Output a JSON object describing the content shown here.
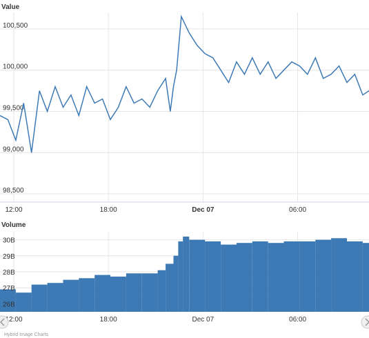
{
  "chart_data": [
    {
      "type": "line",
      "title": "Value",
      "y_ticks": [
        "100,500",
        "100,000",
        "99,500",
        "99,000",
        "98,500"
      ],
      "y_tick_values": [
        100500,
        100000,
        99500,
        99000,
        98500
      ],
      "ylim": [
        98400,
        100700
      ],
      "x_tick_labels": [
        "12:00",
        "18:00",
        "Dec 07",
        "06:00"
      ],
      "x_tick_hours": [
        0,
        6,
        12,
        18
      ],
      "xlim_hours": [
        0,
        23.4
      ],
      "grid": true,
      "color": "#3d7ab5",
      "series": [
        {
          "x": [
            0.0,
            0.5,
            1.0,
            1.5,
            2.0,
            2.5,
            3.0,
            3.5,
            4.0,
            4.5,
            5.0,
            5.5,
            6.0,
            6.5,
            7.0,
            7.5,
            8.0,
            8.5,
            9.0,
            9.5,
            10.0,
            10.5,
            10.8,
            11.0,
            11.2,
            11.5,
            12.0,
            12.5,
            13.0,
            13.5,
            14.0,
            14.5,
            15.0,
            15.5,
            16.0,
            16.5,
            17.0,
            17.5,
            18.0,
            18.5,
            19.0,
            19.5,
            20.0,
            20.5,
            21.0,
            21.5,
            22.0,
            22.5,
            23.0,
            23.4
          ],
          "y": [
            99450,
            99400,
            99150,
            99600,
            99000,
            99750,
            99500,
            99800,
            99550,
            99700,
            99450,
            99800,
            99600,
            99650,
            99400,
            99550,
            99800,
            99600,
            99650,
            99550,
            99750,
            99900,
            99500,
            99800,
            100000,
            100650,
            100450,
            100300,
            100200,
            100150,
            100000,
            99850,
            100100,
            99950,
            100150,
            99950,
            100100,
            99900,
            100000,
            100100,
            100050,
            99950,
            100150,
            99900,
            99950,
            100050,
            99850,
            99950,
            99700,
            99750
          ]
        }
      ]
    },
    {
      "type": "bar",
      "title": "Volume",
      "y_ticks": [
        "30B",
        "29B",
        "28B",
        "27B",
        "26B"
      ],
      "y_tick_values": [
        30,
        29,
        28,
        27,
        26
      ],
      "ylim": [
        25.5,
        30.5
      ],
      "unit": "B",
      "x_tick_labels": [
        "12:00",
        "18:00",
        "Dec 07",
        "06:00"
      ],
      "color": "#3d7ab5",
      "x_hours": [
        0,
        1,
        2,
        3,
        4,
        5,
        6,
        7,
        8,
        9,
        10,
        10.5,
        11,
        11.3,
        11.6,
        12,
        13,
        14,
        15,
        16,
        17,
        18,
        19,
        20,
        21,
        22,
        23,
        23.4
      ],
      "values": [
        26.9,
        26.7,
        27.2,
        27.3,
        27.5,
        27.6,
        27.8,
        27.7,
        27.9,
        27.9,
        28.1,
        28.5,
        29.0,
        29.9,
        30.2,
        30.0,
        29.9,
        29.7,
        29.8,
        29.9,
        29.8,
        29.9,
        29.9,
        30.0,
        30.1,
        29.9,
        29.8,
        29.8
      ]
    }
  ],
  "credit": "Hybrid Image Charts"
}
